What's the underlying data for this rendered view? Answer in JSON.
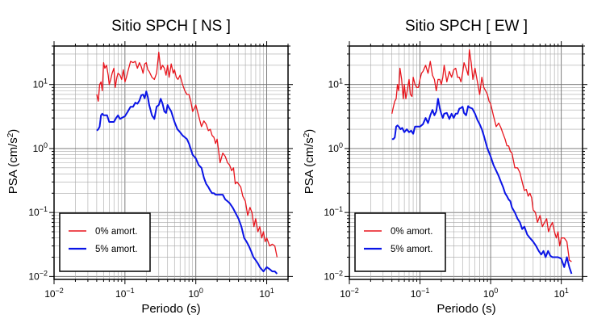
{
  "chart_data": [
    {
      "type": "line",
      "title": "Sitio SPCH [ NS ]",
      "xlabel": "Periodo (s)",
      "ylabel": "PSA (cm/s²)",
      "ylabel_parts": {
        "main": "PSA (cm/s",
        "sup": "2",
        "close": ")"
      },
      "xscale": "log",
      "yscale": "log",
      "xlim": [
        0.01,
        20
      ],
      "ylim": [
        0.009,
        40
      ],
      "xticks": [
        {
          "base": "10",
          "exp": "−2",
          "value": 0.01
        },
        {
          "base": "10",
          "exp": "−1",
          "value": 0.1
        },
        {
          "base": "10",
          "exp": "0",
          "value": 1
        },
        {
          "base": "10",
          "exp": "1",
          "value": 10
        }
      ],
      "yticks": [
        {
          "base": "10",
          "exp": "−2",
          "value": 0.01
        },
        {
          "base": "10",
          "exp": "−1",
          "value": 0.1
        },
        {
          "base": "10",
          "exp": "0",
          "value": 1
        },
        {
          "base": "10",
          "exp": "1",
          "value": 10
        }
      ],
      "grid": true,
      "legend_position": "bottom-left",
      "series": [
        {
          "name": "0% amort.",
          "color": "#e8141c",
          "x": [
            0.04,
            0.042,
            0.044,
            0.046,
            0.048,
            0.05,
            0.052,
            0.055,
            0.058,
            0.06,
            0.063,
            0.066,
            0.07,
            0.073,
            0.077,
            0.08,
            0.085,
            0.09,
            0.095,
            0.1,
            0.105,
            0.11,
            0.12,
            0.13,
            0.14,
            0.15,
            0.16,
            0.17,
            0.18,
            0.19,
            0.2,
            0.21,
            0.22,
            0.24,
            0.26,
            0.28,
            0.3,
            0.32,
            0.34,
            0.36,
            0.38,
            0.4,
            0.42,
            0.45,
            0.48,
            0.5,
            0.53,
            0.56,
            0.6,
            0.65,
            0.7,
            0.75,
            0.8,
            0.85,
            0.9,
            0.95,
            1.0,
            1.1,
            1.2,
            1.3,
            1.4,
            1.5,
            1.6,
            1.7,
            1.8,
            1.9,
            2.0,
            2.2,
            2.4,
            2.6,
            2.8,
            3.0,
            3.2,
            3.4,
            3.6,
            3.8,
            4.0,
            4.3,
            4.6,
            5.0,
            5.4,
            5.8,
            6.2,
            6.6,
            7.0,
            7.5,
            8.0,
            8.5,
            9.0,
            9.5,
            10,
            11,
            12,
            13,
            14
          ],
          "y": [
            7,
            5.5,
            10,
            11,
            8,
            22,
            18,
            20,
            14,
            10,
            12,
            15,
            18,
            9,
            13,
            15,
            14,
            12,
            17,
            11,
            13,
            16,
            23,
            22,
            23,
            18,
            22,
            19,
            15,
            21,
            22,
            17,
            16,
            13,
            12,
            15,
            32,
            17,
            20,
            18,
            14,
            20,
            13,
            21,
            15,
            17,
            13,
            12,
            14,
            10,
            8,
            7,
            7,
            5.5,
            3.8,
            4.2,
            4.8,
            3.2,
            2.2,
            2.7,
            2.4,
            1.9,
            2.0,
            1.6,
            1.5,
            1.2,
            1.4,
            0.6,
            0.85,
            0.75,
            0.6,
            0.55,
            0.45,
            0.5,
            0.28,
            0.3,
            0.28,
            0.25,
            0.18,
            0.15,
            0.09,
            0.12,
            0.1,
            0.06,
            0.08,
            0.05,
            0.06,
            0.04,
            0.05,
            0.035,
            0.04,
            0.03,
            0.032,
            0.03,
            0.02
          ]
        },
        {
          "name": "5% amort.",
          "color": "#0a14e6",
          "x": [
            0.04,
            0.042,
            0.044,
            0.046,
            0.048,
            0.05,
            0.053,
            0.056,
            0.06,
            0.065,
            0.07,
            0.075,
            0.08,
            0.085,
            0.09,
            0.1,
            0.11,
            0.12,
            0.13,
            0.14,
            0.15,
            0.16,
            0.17,
            0.18,
            0.19,
            0.2,
            0.21,
            0.22,
            0.24,
            0.26,
            0.28,
            0.3,
            0.32,
            0.34,
            0.36,
            0.38,
            0.4,
            0.42,
            0.45,
            0.48,
            0.5,
            0.55,
            0.6,
            0.65,
            0.7,
            0.75,
            0.8,
            0.9,
            1.0,
            1.1,
            1.2,
            1.3,
            1.4,
            1.5,
            1.6,
            1.7,
            1.8,
            1.9,
            2.0,
            2.2,
            2.4,
            2.6,
            2.8,
            3.0,
            3.3,
            3.6,
            4.0,
            4.4,
            4.8,
            5.2,
            5.6,
            6.0,
            6.5,
            7.0,
            7.5,
            8,
            9,
            10,
            11,
            12,
            13,
            14
          ],
          "y": [
            1.9,
            2.0,
            2.2,
            3.3,
            3.5,
            3.3,
            3.3,
            3.3,
            2.6,
            2.6,
            2.6,
            3.0,
            3.3,
            2.9,
            3.0,
            3.2,
            3.8,
            4.5,
            4.5,
            5.2,
            5.0,
            5.6,
            6.8,
            7.0,
            6.1,
            7.8,
            6.4,
            4.8,
            3.3,
            2.9,
            4.5,
            4.8,
            6.0,
            5.0,
            3.8,
            3.6,
            4.8,
            4.3,
            3.8,
            3.0,
            2.6,
            2.0,
            1.8,
            1.6,
            1.5,
            1.4,
            1.2,
            0.8,
            0.7,
            0.55,
            0.5,
            0.35,
            0.28,
            0.25,
            0.22,
            0.2,
            0.2,
            0.19,
            0.19,
            0.19,
            0.19,
            0.16,
            0.15,
            0.14,
            0.12,
            0.1,
            0.08,
            0.06,
            0.04,
            0.035,
            0.03,
            0.025,
            0.02,
            0.018,
            0.016,
            0.014,
            0.012,
            0.014,
            0.013,
            0.012,
            0.012,
            0.011
          ]
        }
      ]
    },
    {
      "type": "line",
      "title": "Sitio SPCH [ EW ]",
      "xlabel": "Periodo (s)",
      "ylabel": "PSA (cm/s²)",
      "ylabel_parts": {
        "main": "PSA (cm/s",
        "sup": "2",
        "close": ")"
      },
      "xscale": "log",
      "yscale": "log",
      "xlim": [
        0.01,
        20
      ],
      "ylim": [
        0.009,
        40
      ],
      "xticks": [
        {
          "base": "10",
          "exp": "−2",
          "value": 0.01
        },
        {
          "base": "10",
          "exp": "−1",
          "value": 0.1
        },
        {
          "base": "10",
          "exp": "0",
          "value": 1
        },
        {
          "base": "10",
          "exp": "1",
          "value": 10
        }
      ],
      "yticks": [
        {
          "base": "10",
          "exp": "−2",
          "value": 0.01
        },
        {
          "base": "10",
          "exp": "−1",
          "value": 0.1
        },
        {
          "base": "10",
          "exp": "0",
          "value": 1
        },
        {
          "base": "10",
          "exp": "1",
          "value": 10
        }
      ],
      "grid": true,
      "legend_position": "bottom-left",
      "series": [
        {
          "name": "0% amort.",
          "color": "#e8141c",
          "x": [
            0.04,
            0.042,
            0.044,
            0.046,
            0.048,
            0.05,
            0.052,
            0.055,
            0.058,
            0.06,
            0.063,
            0.066,
            0.07,
            0.073,
            0.077,
            0.08,
            0.085,
            0.09,
            0.095,
            0.1,
            0.105,
            0.11,
            0.12,
            0.13,
            0.14,
            0.15,
            0.16,
            0.17,
            0.18,
            0.19,
            0.2,
            0.21,
            0.22,
            0.24,
            0.26,
            0.28,
            0.3,
            0.32,
            0.34,
            0.36,
            0.38,
            0.4,
            0.42,
            0.45,
            0.48,
            0.5,
            0.53,
            0.56,
            0.6,
            0.65,
            0.7,
            0.75,
            0.8,
            0.85,
            0.9,
            0.95,
            1.0,
            1.1,
            1.2,
            1.3,
            1.4,
            1.5,
            1.6,
            1.7,
            1.8,
            1.9,
            2.0,
            2.2,
            2.4,
            2.6,
            2.8,
            3.0,
            3.2,
            3.4,
            3.6,
            3.8,
            4.0,
            4.3,
            4.6,
            5.0,
            5.4,
            5.8,
            6.2,
            6.6,
            7.0,
            7.5,
            8.0,
            8.5,
            9.0,
            9.5,
            10,
            11,
            12,
            13,
            14
          ],
          "y": [
            3.5,
            4.5,
            5.5,
            6.0,
            10,
            8,
            18,
            12,
            6,
            10,
            6,
            8,
            12,
            7,
            6.5,
            13,
            10,
            9,
            9,
            12,
            15,
            16,
            20,
            15,
            23,
            14,
            12,
            8,
            12,
            12,
            10,
            13,
            20,
            11,
            16,
            13,
            17,
            18,
            13,
            13,
            11,
            15,
            22,
            18,
            14,
            35,
            22,
            12,
            18,
            11,
            7,
            13,
            9,
            8,
            7,
            5.5,
            5,
            3.2,
            2.2,
            2.5,
            2.1,
            1.7,
            1.4,
            1.1,
            1.1,
            0.9,
            0.85,
            0.5,
            0.5,
            0.42,
            0.3,
            0.22,
            0.23,
            0.18,
            0.2,
            0.17,
            0.11,
            0.1,
            0.07,
            0.09,
            0.06,
            0.07,
            0.08,
            0.05,
            0.06,
            0.07,
            0.05,
            0.04,
            0.05,
            0.03,
            0.04,
            0.04,
            0.035,
            0.018,
            0.017
          ]
        },
        {
          "name": "5% amort.",
          "color": "#0a14e6",
          "x": [
            0.04,
            0.042,
            0.044,
            0.046,
            0.048,
            0.05,
            0.053,
            0.056,
            0.06,
            0.065,
            0.07,
            0.075,
            0.08,
            0.085,
            0.09,
            0.1,
            0.11,
            0.12,
            0.13,
            0.14,
            0.15,
            0.16,
            0.17,
            0.18,
            0.19,
            0.2,
            0.21,
            0.22,
            0.24,
            0.26,
            0.28,
            0.3,
            0.32,
            0.34,
            0.36,
            0.38,
            0.4,
            0.42,
            0.45,
            0.48,
            0.5,
            0.55,
            0.6,
            0.65,
            0.7,
            0.75,
            0.8,
            0.9,
            1.0,
            1.1,
            1.2,
            1.3,
            1.4,
            1.5,
            1.6,
            1.7,
            1.8,
            1.9,
            2.0,
            2.2,
            2.4,
            2.6,
            2.8,
            3.0,
            3.3,
            3.6,
            4.0,
            4.4,
            4.8,
            5.2,
            5.6,
            6.0,
            6.5,
            7.0,
            7.5,
            8,
            9,
            10,
            11,
            12,
            13,
            14
          ],
          "y": [
            1.4,
            1.4,
            1.5,
            2.2,
            2.3,
            2.2,
            2.0,
            2.1,
            1.8,
            2.0,
            1.8,
            1.9,
            1.7,
            2.2,
            2.2,
            2.2,
            2.4,
            3.0,
            2.5,
            3.3,
            4.0,
            3.3,
            3.8,
            6.0,
            4.3,
            3.5,
            3.0,
            3.5,
            3.6,
            2.9,
            3.5,
            3.0,
            3.5,
            3.5,
            4.2,
            4.3,
            4.5,
            3.6,
            3.3,
            4.6,
            4.4,
            4.2,
            3.5,
            2.8,
            2.4,
            2.0,
            1.6,
            1.0,
            0.75,
            0.55,
            0.45,
            0.37,
            0.3,
            0.25,
            0.2,
            0.18,
            0.16,
            0.15,
            0.12,
            0.1,
            0.08,
            0.07,
            0.055,
            0.06,
            0.045,
            0.04,
            0.035,
            0.03,
            0.025,
            0.022,
            0.025,
            0.02,
            0.025,
            0.021,
            0.02,
            0.02,
            0.02,
            0.019,
            0.014,
            0.02,
            0.014,
            0.011
          ]
        }
      ]
    }
  ]
}
